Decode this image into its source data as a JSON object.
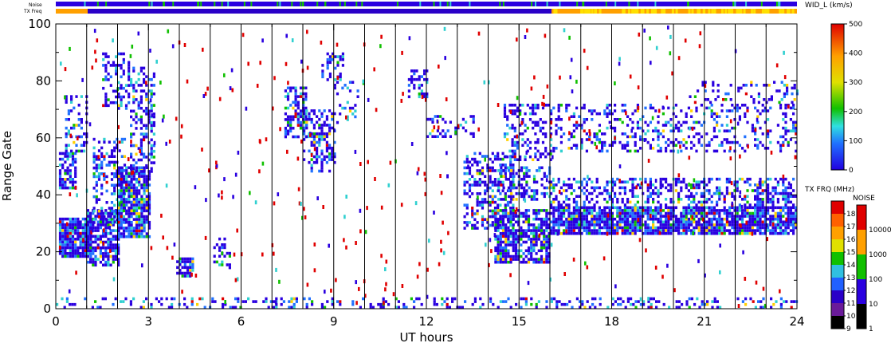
{
  "chart_data": {
    "type": "heatmap",
    "xlabel": "UT hours",
    "ylabel": "Range Gate",
    "xlim": [
      0,
      24
    ],
    "ylim": [
      0,
      100
    ],
    "x_ticks": [
      0,
      3,
      6,
      9,
      12,
      15,
      18,
      21,
      24
    ],
    "y_ticks": [
      0,
      20,
      40,
      60,
      80,
      100
    ],
    "scan_boundaries_ut": [
      1,
      2,
      3,
      4,
      5,
      6,
      7,
      8,
      9,
      10,
      11,
      12,
      13,
      14,
      15,
      16,
      17,
      18,
      19,
      20,
      21,
      22,
      23
    ],
    "strip_labels": [
      "Noise",
      "TX Freq"
    ],
    "colorbar_width": {
      "title": "WID_L (km/s)",
      "ticks": [
        0,
        100,
        200,
        300,
        400,
        500
      ],
      "range": [
        0,
        500
      ]
    },
    "colorbar_txfreq": {
      "title": "TX FRQ (MHz)",
      "ticks": [
        9,
        10,
        11,
        12,
        13,
        14,
        15,
        16,
        17,
        18
      ],
      "colors": [
        "#000000",
        "#6a1b9a",
        "#2a00c8",
        "#2060ff",
        "#30c0e0",
        "#10c000",
        "#e0e000",
        "#ffa000",
        "#ff6000",
        "#e00000"
      ]
    },
    "colorbar_noise": {
      "title": "NOISE",
      "ticks": [
        1,
        10,
        100,
        1000,
        10000
      ],
      "colors": [
        "#000000",
        "#2a00e0",
        "#10c000",
        "#ffa000",
        "#e00000"
      ]
    },
    "echo_regions": [
      {
        "t0": 0.1,
        "t1": 1.1,
        "g0": 18,
        "g1": 32,
        "density": 0.9
      },
      {
        "t0": 0.1,
        "t1": 0.6,
        "g0": 42,
        "g1": 55,
        "density": 0.6
      },
      {
        "t0": 0.3,
        "t1": 1.0,
        "g0": 55,
        "g1": 75,
        "density": 0.35
      },
      {
        "t0": 1.0,
        "t1": 2.0,
        "g0": 15,
        "g1": 35,
        "density": 0.7
      },
      {
        "t0": 1.2,
        "t1": 2.2,
        "g0": 30,
        "g1": 60,
        "density": 0.35
      },
      {
        "t0": 1.5,
        "t1": 2.4,
        "g0": 70,
        "g1": 90,
        "density": 0.35
      },
      {
        "t0": 2.0,
        "t1": 3.0,
        "g0": 25,
        "g1": 50,
        "density": 0.85
      },
      {
        "t0": 2.4,
        "t1": 3.2,
        "g0": 48,
        "g1": 85,
        "density": 0.4
      },
      {
        "t0": 3.9,
        "t1": 4.4,
        "g0": 11,
        "g1": 18,
        "density": 0.7
      },
      {
        "t0": 5.1,
        "t1": 5.6,
        "g0": 14,
        "g1": 25,
        "density": 0.35
      },
      {
        "t0": 7.4,
        "t1": 8.1,
        "g0": 60,
        "g1": 78,
        "density": 0.55
      },
      {
        "t0": 8.0,
        "t1": 9.0,
        "g0": 48,
        "g1": 70,
        "density": 0.4
      },
      {
        "t0": 8.6,
        "t1": 9.3,
        "g0": 80,
        "g1": 90,
        "density": 0.35
      },
      {
        "t0": 9.0,
        "t1": 9.8,
        "g0": 65,
        "g1": 80,
        "density": 0.15
      },
      {
        "t0": 11.4,
        "t1": 12.0,
        "g0": 74,
        "g1": 84,
        "density": 0.4
      },
      {
        "t0": 12.0,
        "t1": 13.5,
        "g0": 60,
        "g1": 68,
        "density": 0.3
      },
      {
        "t0": 13.2,
        "t1": 14.8,
        "g0": 28,
        "g1": 55,
        "density": 0.45
      },
      {
        "t0": 14.2,
        "t1": 16.0,
        "g0": 16,
        "g1": 35,
        "density": 0.75
      },
      {
        "t0": 14.3,
        "t1": 16.0,
        "g0": 38,
        "g1": 50,
        "density": 0.4
      },
      {
        "t0": 14.5,
        "t1": 16.0,
        "g0": 52,
        "g1": 72,
        "density": 0.3
      },
      {
        "t0": 16.0,
        "t1": 24.0,
        "g0": 26,
        "g1": 36,
        "density": 0.85
      },
      {
        "t0": 16.0,
        "t1": 24.0,
        "g0": 36,
        "g1": 46,
        "density": 0.4
      },
      {
        "t0": 16.0,
        "t1": 24.0,
        "g0": 55,
        "g1": 72,
        "density": 0.25
      },
      {
        "t0": 20.5,
        "t1": 24.0,
        "g0": 72,
        "g1": 80,
        "density": 0.2
      },
      {
        "t0": 0.0,
        "t1": 24.0,
        "g0": 0,
        "g1": 4,
        "density": 0.25
      }
    ]
  }
}
